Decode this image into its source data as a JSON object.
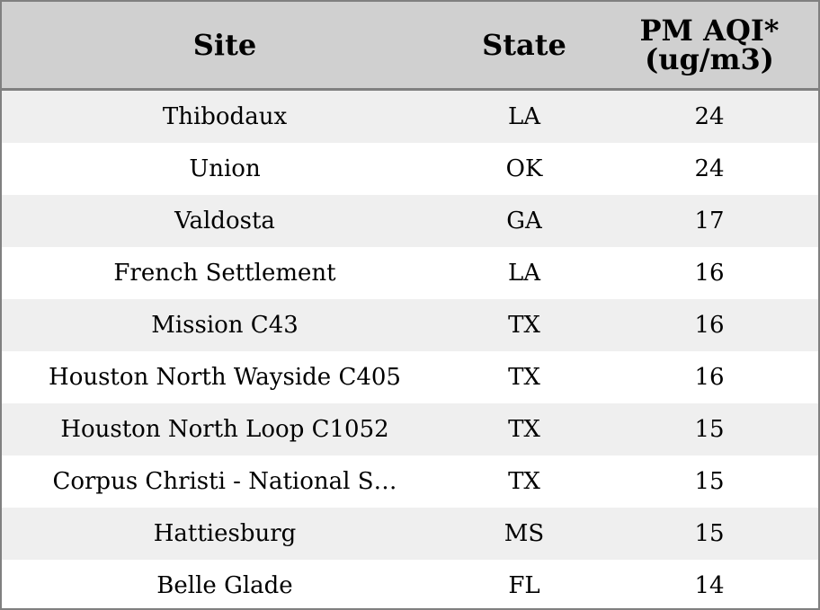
{
  "chart_data": {
    "type": "table",
    "columns": [
      "Site",
      "State",
      "PM AQI*\n(ug/m3)"
    ],
    "rows": [
      {
        "site": "Thibodaux",
        "state": "LA",
        "pm_aqi": 24
      },
      {
        "site": "Union",
        "state": "OK",
        "pm_aqi": 24
      },
      {
        "site": "Valdosta",
        "state": "GA",
        "pm_aqi": 17
      },
      {
        "site": "French Settlement",
        "state": "LA",
        "pm_aqi": 16
      },
      {
        "site": "Mission C43",
        "state": "TX",
        "pm_aqi": 16
      },
      {
        "site": "Houston North Wayside C405",
        "state": "TX",
        "pm_aqi": 16
      },
      {
        "site": "Houston North Loop C1052",
        "state": "TX",
        "pm_aqi": 15
      },
      {
        "site": "Corpus Christi - National S…",
        "state": "TX",
        "pm_aqi": 15
      },
      {
        "site": "Hattiesburg",
        "state": "MS",
        "pm_aqi": 15
      },
      {
        "site": "Belle Glade",
        "state": "FL",
        "pm_aqi": 14
      }
    ]
  },
  "colors": {
    "header_bg": "#d0d0d0",
    "row_alt_bg": "#efefef",
    "row_bg": "#ffffff",
    "border": "#808080"
  }
}
